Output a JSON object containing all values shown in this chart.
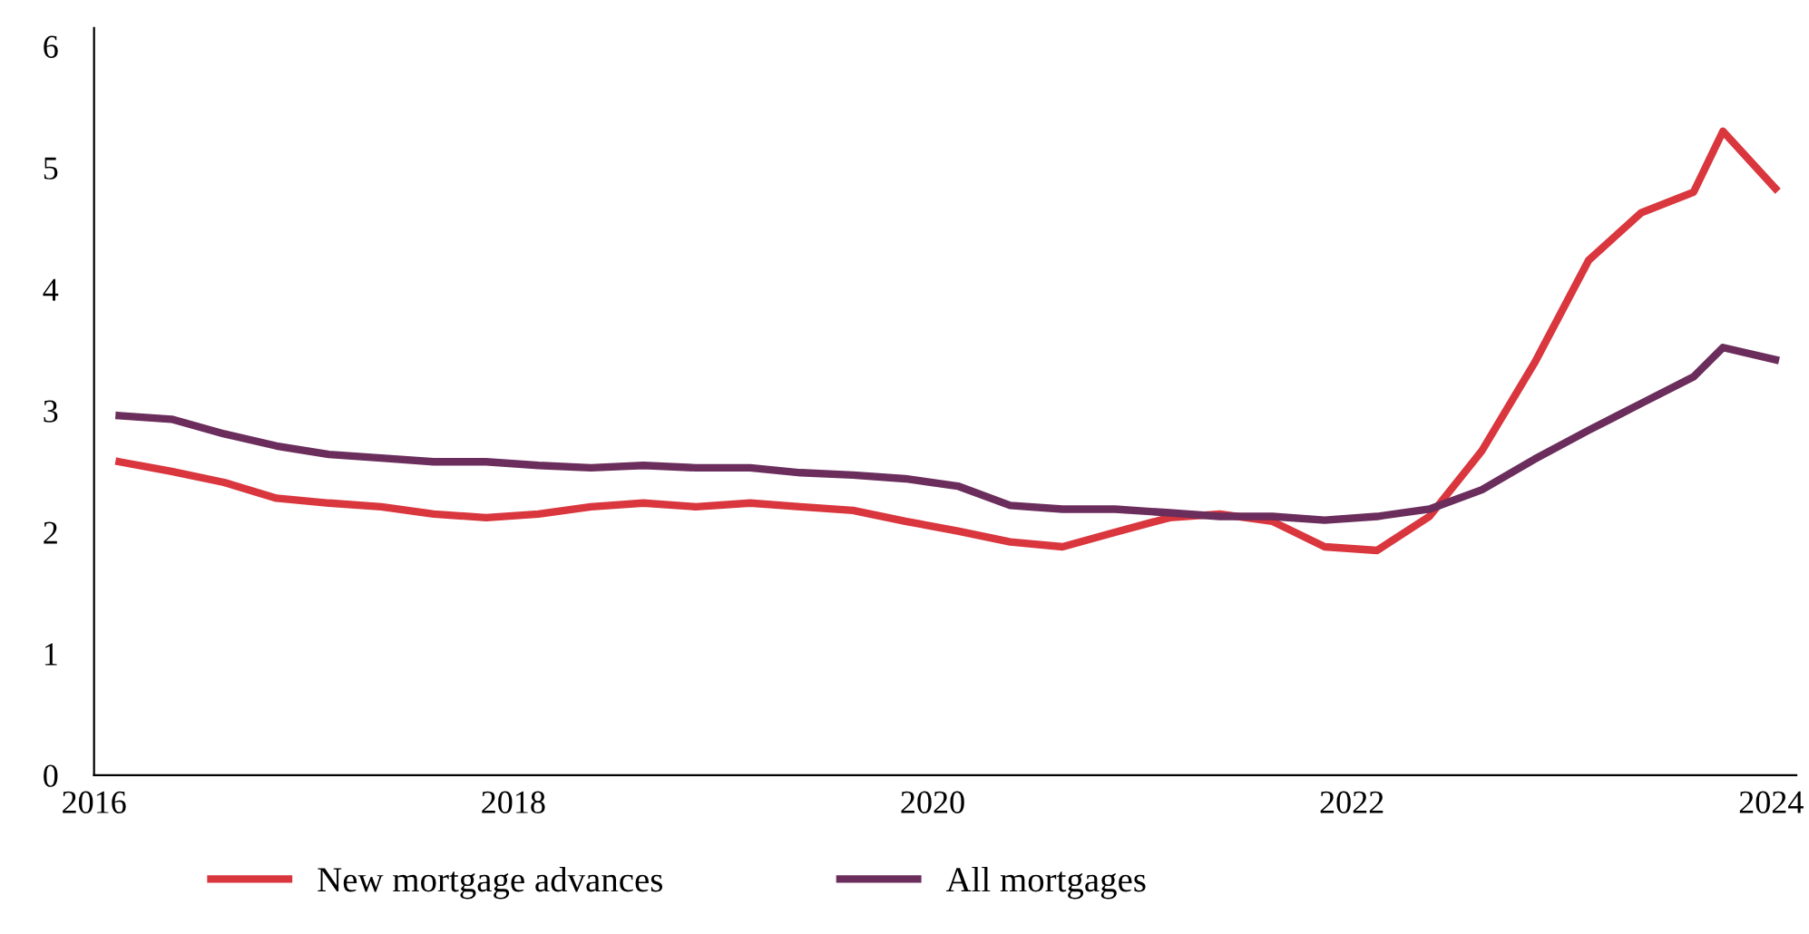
{
  "chart_data": {
    "type": "line",
    "x": [
      2016.12,
      2016.37,
      2016.62,
      2016.87,
      2017.12,
      2017.37,
      2017.62,
      2017.87,
      2018.12,
      2018.37,
      2018.62,
      2018.87,
      2019.13,
      2019.37,
      2019.62,
      2019.87,
      2020.12,
      2020.37,
      2020.62,
      2020.87,
      2021.13,
      2021.37,
      2021.62,
      2021.87,
      2022.12,
      2022.37,
      2022.62,
      2022.87,
      2023.13,
      2023.38,
      2023.63,
      2023.77,
      2024.02
    ],
    "series": [
      {
        "name": "New mortgage advances",
        "color": "#d9363e",
        "values": [
          2.58,
          2.5,
          2.41,
          2.28,
          2.24,
          2.21,
          2.15,
          2.12,
          2.15,
          2.21,
          2.24,
          2.21,
          2.24,
          2.21,
          2.18,
          2.09,
          2.01,
          1.92,
          1.88,
          2.0,
          2.12,
          2.15,
          2.09,
          1.88,
          1.85,
          2.13,
          2.67,
          3.39,
          4.24,
          4.63,
          4.8,
          5.3,
          4.83
        ]
      },
      {
        "name": "All mortgages",
        "color": "#6b2d5c",
        "values": [
          2.96,
          2.93,
          2.81,
          2.71,
          2.64,
          2.61,
          2.58,
          2.58,
          2.55,
          2.53,
          2.55,
          2.53,
          2.53,
          2.49,
          2.47,
          2.44,
          2.38,
          2.22,
          2.19,
          2.19,
          2.16,
          2.13,
          2.13,
          2.1,
          2.13,
          2.19,
          2.35,
          2.6,
          2.84,
          3.06,
          3.28,
          3.52,
          3.42
        ]
      }
    ],
    "xlim": [
      2016,
      2024.12
    ],
    "xticks": [
      2016,
      2018,
      2020,
      2022,
      2024
    ],
    "ylim": [
      0,
      6.15
    ],
    "yticks": [
      0,
      1,
      2,
      3,
      4,
      5,
      6
    ],
    "grid": false,
    "legend": "bottom",
    "marker": "none",
    "line_style": "solid"
  }
}
